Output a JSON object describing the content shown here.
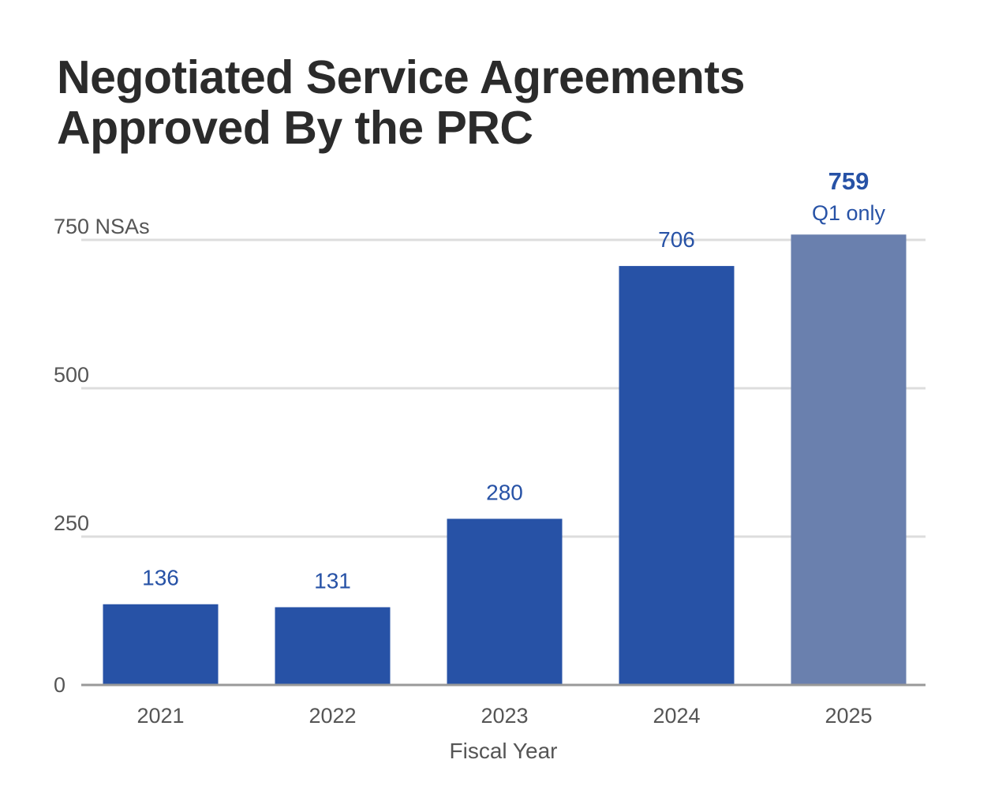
{
  "chart_data": {
    "type": "bar",
    "title_lines": [
      "Negotiated Service Agreements",
      "Approved By the PRC"
    ],
    "categories": [
      "2021",
      "2022",
      "2023",
      "2024",
      "2025"
    ],
    "values": [
      136,
      131,
      280,
      706,
      759
    ],
    "value_labels": [
      "136",
      "131",
      "280",
      "706",
      "759"
    ],
    "emphasized": [
      false,
      false,
      false,
      false,
      true
    ],
    "bar_colors": [
      "#2752a6",
      "#2752a6",
      "#2752a6",
      "#2752a6",
      "#6a80ae"
    ],
    "notes": [
      "",
      "",
      "",
      "",
      "Q1 only"
    ],
    "y_ticks": [
      {
        "value": 0,
        "label": "0"
      },
      {
        "value": 250,
        "label": "250"
      },
      {
        "value": 500,
        "label": "500"
      },
      {
        "value": 750,
        "label": "750 NSAs"
      }
    ],
    "ylim": [
      0,
      750
    ],
    "xlabel": "Fiscal Year",
    "ylabel": "",
    "grid": true,
    "colors": {
      "bar": "#2752a6",
      "bar_partial": "#6a80ae",
      "gridline": "#dddddd",
      "baseline": "#999999",
      "text": "#555555",
      "title": "#2b2b2b"
    }
  }
}
